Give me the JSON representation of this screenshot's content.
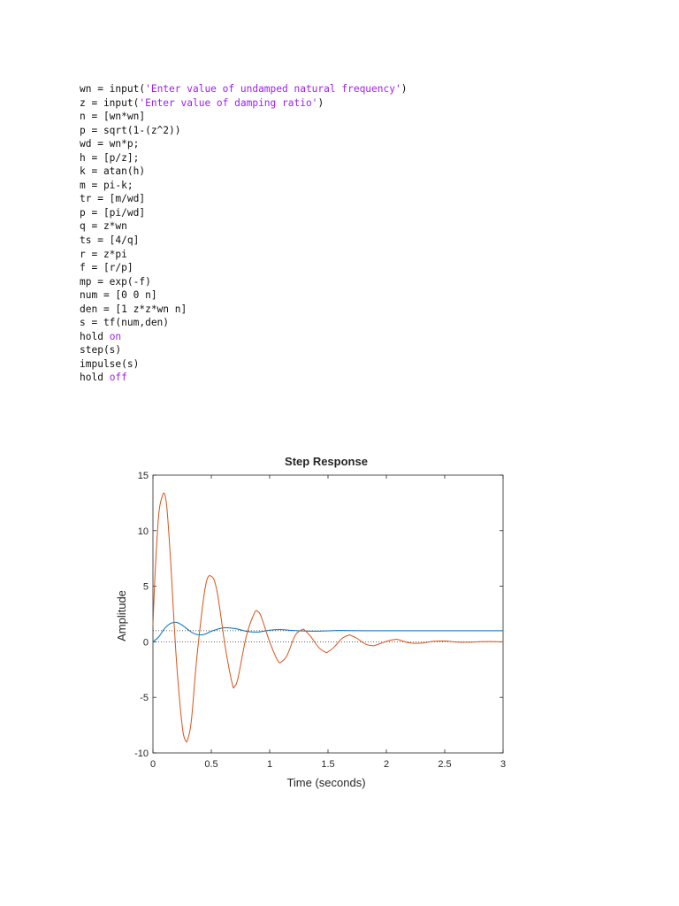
{
  "code": {
    "lines": [
      [
        {
          "t": "wn = input("
        },
        {
          "t": "'Enter value of undamped natural frequency'",
          "c": "str"
        },
        {
          "t": ")"
        }
      ],
      [
        {
          "t": "z = input("
        },
        {
          "t": "'Enter value of damping ratio'",
          "c": "str"
        },
        {
          "t": ")"
        }
      ],
      [
        {
          "t": "n = [wn*wn]"
        }
      ],
      [
        {
          "t": "p = sqrt(1-(z^2))"
        }
      ],
      [
        {
          "t": "wd = wn*p;"
        }
      ],
      [
        {
          "t": "h = [p/z];"
        }
      ],
      [
        {
          "t": "k = atan(h)"
        }
      ],
      [
        {
          "t": "m = pi-k;"
        }
      ],
      [
        {
          "t": "tr = [m/wd]"
        }
      ],
      [
        {
          "t": "p = [pi/wd]"
        }
      ],
      [
        {
          "t": "q = z*wn"
        }
      ],
      [
        {
          "t": "ts = [4/q]"
        }
      ],
      [
        {
          "t": "r = z*pi"
        }
      ],
      [
        {
          "t": "f = [r/p]"
        }
      ],
      [
        {
          "t": "mp = exp(-f)"
        }
      ],
      [
        {
          "t": "num = [0 0 n]"
        }
      ],
      [
        {
          "t": "den = [1 z*z*wn n]"
        }
      ],
      [
        {
          "t": "s = tf(num,den)"
        }
      ],
      [
        {
          "t": "hold "
        },
        {
          "t": "on",
          "c": "kw"
        }
      ],
      [
        {
          "t": "step(s)"
        }
      ],
      [
        {
          "t": "impulse(s)"
        }
      ],
      [
        {
          "t": "hold "
        },
        {
          "t": "off",
          "c": "kw"
        }
      ]
    ]
  },
  "colors": {
    "keyword": "#a020f0",
    "step_series": "#0072bd",
    "impulse_series": "#d95319",
    "axis": "#262626"
  },
  "chart_data": {
    "type": "line",
    "title": "Step Response",
    "xlabel": "Time (seconds)",
    "ylabel": "Amplitude",
    "xlim": [
      0,
      3
    ],
    "ylim": [
      -10,
      15
    ],
    "xticks": [
      0,
      0.5,
      1,
      1.5,
      2,
      2.5,
      3
    ],
    "xtick_labels": [
      "0",
      "0.5",
      "1",
      "1.5",
      "2",
      "2.5",
      "3"
    ],
    "yticks": [
      -10,
      -5,
      0,
      5,
      10,
      15
    ],
    "ytick_labels": [
      "-10",
      "-5",
      "0",
      "5",
      "10",
      "15"
    ],
    "grid": false,
    "reference_lines": [
      {
        "y": 1,
        "style": "dotted"
      },
      {
        "y": 0,
        "style": "dotted"
      }
    ],
    "series": [
      {
        "color": "#0072bd",
        "x": [
          0,
          0.05,
          0.1,
          0.15,
          0.2,
          0.25,
          0.3,
          0.35,
          0.4,
          0.45,
          0.5,
          0.6,
          0.7,
          0.8,
          0.9,
          1.0,
          1.1,
          1.2,
          1.4,
          1.6,
          1.8,
          2.0,
          2.5,
          3.0
        ],
        "y": [
          0,
          0.45,
          1.2,
          1.65,
          1.75,
          1.5,
          1.1,
          0.75,
          0.62,
          0.7,
          0.95,
          1.25,
          1.2,
          0.95,
          0.88,
          1.05,
          1.1,
          1.02,
          0.96,
          1.02,
          1.0,
          1.0,
          1.0,
          1.0
        ]
      },
      {
        "color": "#d95319",
        "x": [
          0,
          0.02,
          0.05,
          0.08,
          0.1,
          0.12,
          0.15,
          0.2,
          0.25,
          0.28,
          0.3,
          0.33,
          0.38,
          0.45,
          0.5,
          0.55,
          0.62,
          0.68,
          0.7,
          0.73,
          0.8,
          0.87,
          0.9,
          0.93,
          1.0,
          1.07,
          1.1,
          1.15,
          1.22,
          1.28,
          1.3,
          1.35,
          1.42,
          1.48,
          1.5,
          1.55,
          1.62,
          1.68,
          1.7,
          1.75,
          1.82,
          1.88,
          1.9,
          1.95,
          2.02,
          2.08,
          2.1,
          2.2,
          2.3,
          2.4,
          2.5,
          2.6,
          2.7,
          2.8,
          2.9,
          3.0
        ],
        "y": [
          1.5,
          6.5,
          11.5,
          13.1,
          13.3,
          12.0,
          7.5,
          -1.5,
          -7.5,
          -8.9,
          -8.7,
          -7.0,
          -1.0,
          5.0,
          5.9,
          4.5,
          -0.5,
          -3.8,
          -4.0,
          -3.2,
          0.5,
          2.6,
          2.7,
          2.2,
          0.0,
          -1.7,
          -1.8,
          -1.2,
          0.6,
          1.1,
          1.05,
          0.5,
          -0.5,
          -0.95,
          -0.9,
          -0.5,
          0.3,
          0.6,
          0.55,
          0.3,
          -0.2,
          -0.35,
          -0.33,
          -0.15,
          0.1,
          0.22,
          0.2,
          -0.1,
          -0.12,
          0.04,
          0.07,
          -0.02,
          -0.04,
          0.01,
          0.02,
          0.0
        ]
      }
    ]
  }
}
